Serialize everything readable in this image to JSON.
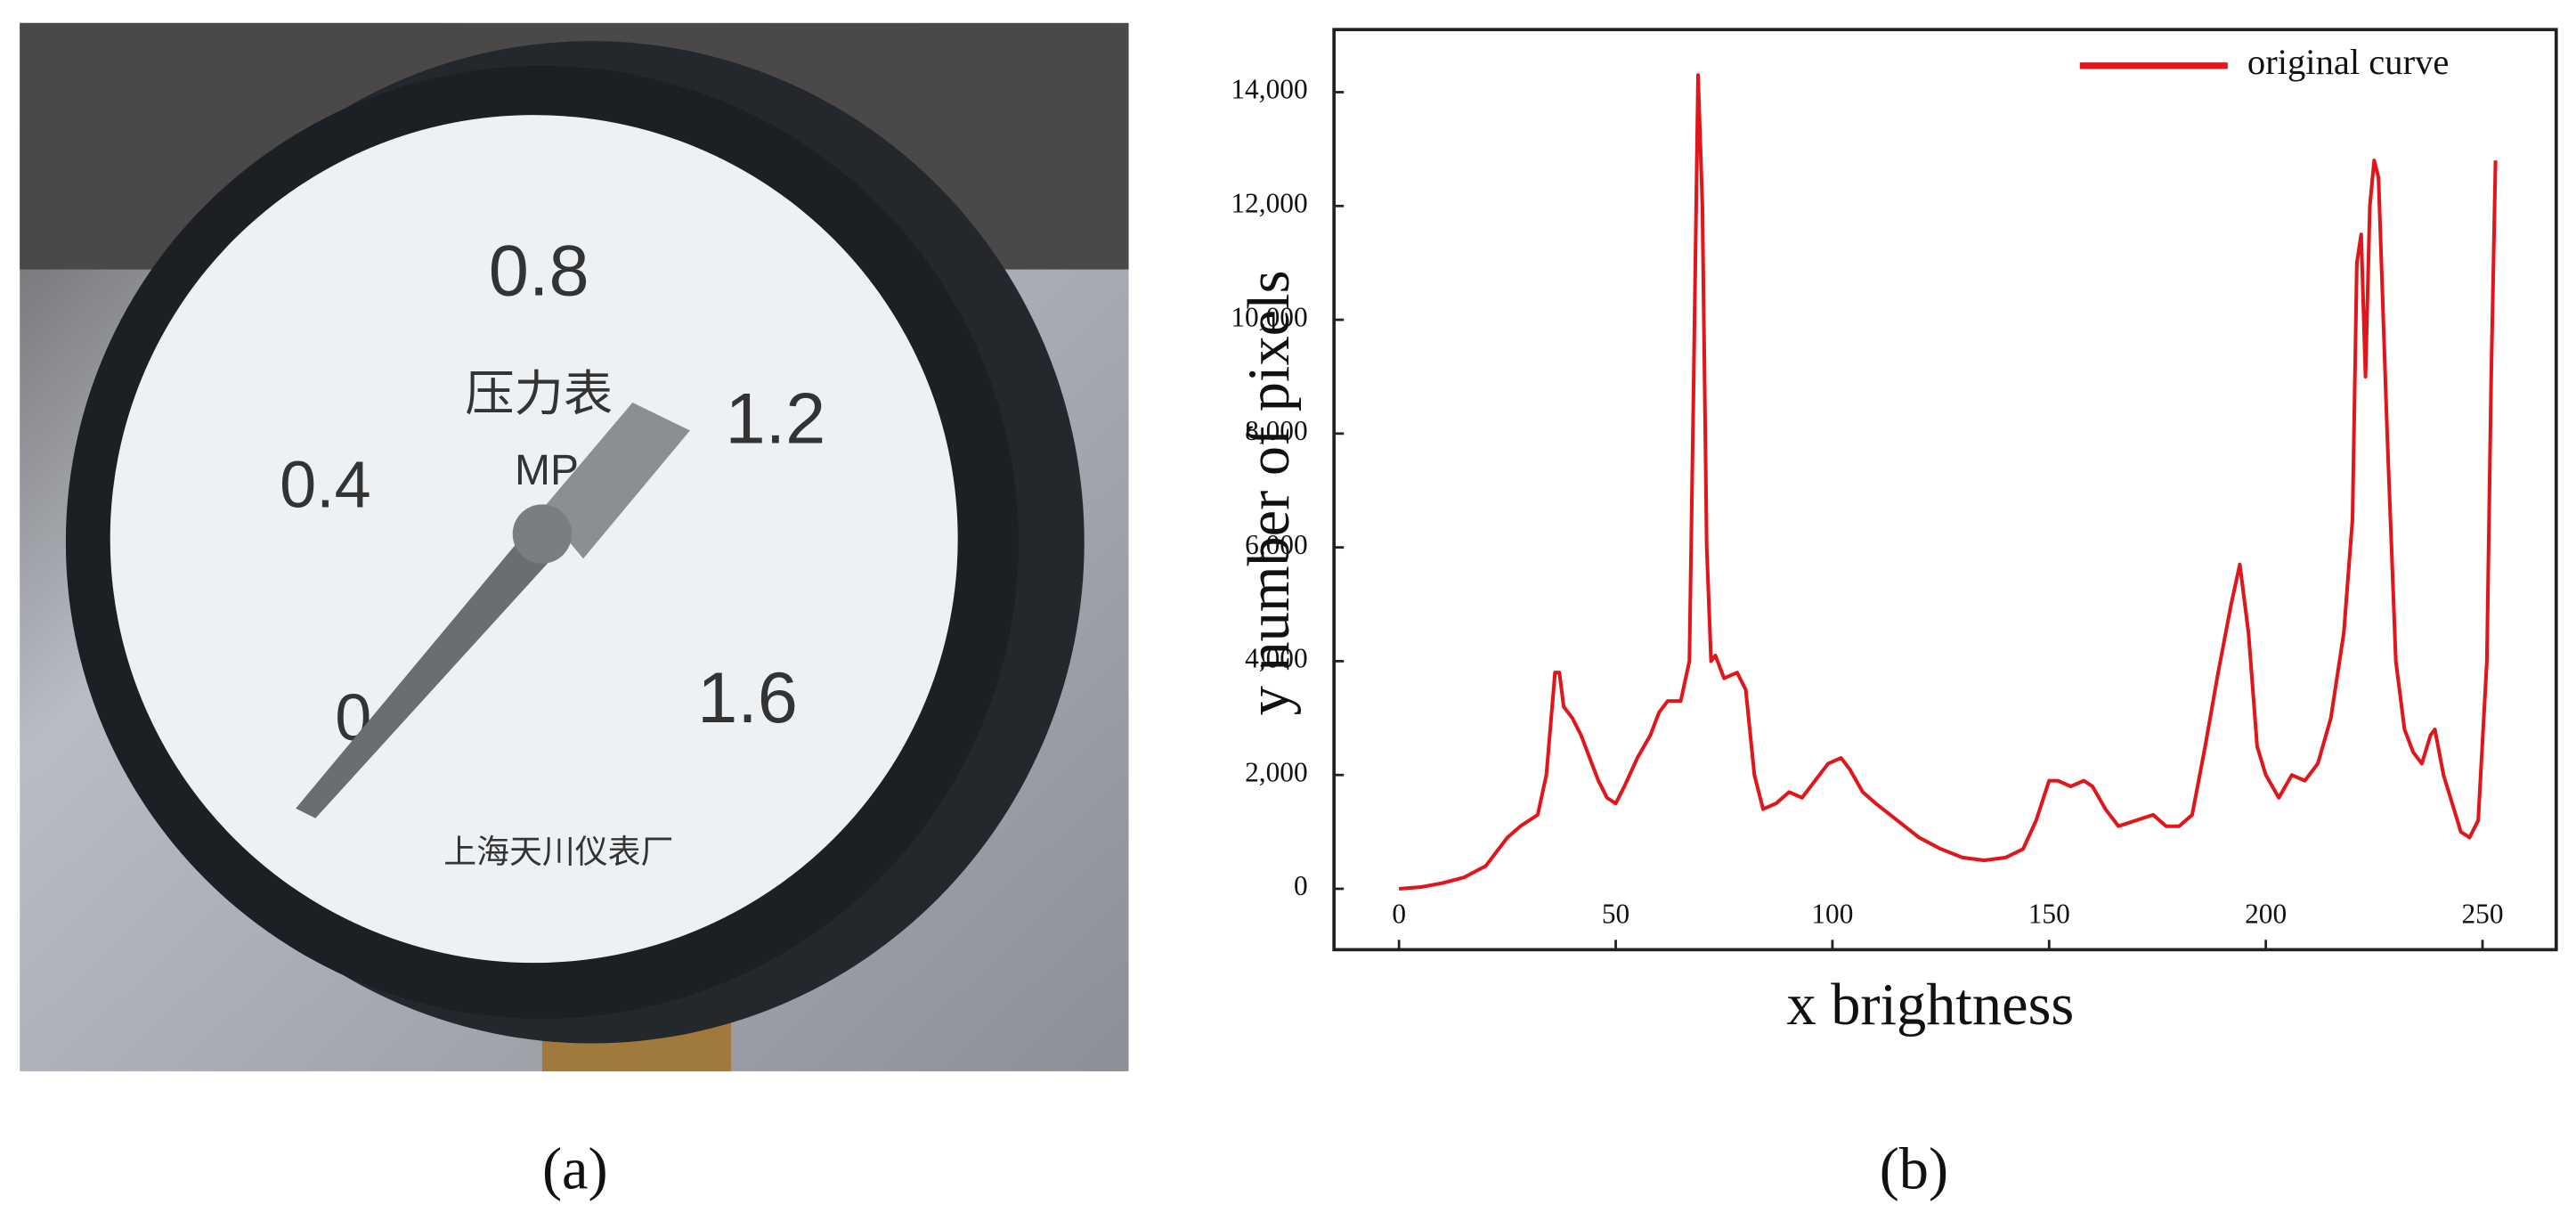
{
  "panel_a": {
    "label": "(a)",
    "dial_labels": [
      "0",
      "0.4",
      "0.8",
      "1.2",
      "1.6"
    ],
    "name": "压力表",
    "unit": "MPa",
    "maker": "上海天川仪表厂"
  },
  "chart_data": {
    "type": "line",
    "label": "(b)",
    "xlabel": "x brightness",
    "ylabel": "y number of pixels",
    "x": [
      0,
      5,
      10,
      15,
      20,
      25,
      28,
      30,
      32,
      34,
      36,
      37,
      38,
      40,
      42,
      44,
      46,
      48,
      50,
      52,
      55,
      58,
      60,
      62,
      65,
      67,
      68,
      69,
      70,
      71,
      72,
      73,
      75,
      78,
      80,
      82,
      84,
      87,
      90,
      93,
      96,
      99,
      102,
      104,
      107,
      110,
      115,
      120,
      125,
      130,
      135,
      140,
      144,
      147,
      150,
      152,
      155,
      158,
      160,
      163,
      166,
      170,
      174,
      177,
      180,
      183,
      186,
      189,
      192,
      194,
      196,
      198,
      200,
      203,
      206,
      209,
      212,
      215,
      218,
      220,
      221,
      222,
      223,
      224,
      225,
      226,
      228,
      230,
      232,
      234,
      236,
      238,
      239,
      241,
      243,
      245,
      247,
      249,
      251,
      252,
      253
    ],
    "series": [
      {
        "name": "original curve",
        "color": "#e0161b",
        "values": [
          0,
          30,
          100,
          200,
          400,
          900,
          1100,
          1200,
          1300,
          2000,
          3800,
          3800,
          3200,
          3000,
          2700,
          2300,
          1900,
          1600,
          1500,
          1800,
          2300,
          2700,
          3100,
          3300,
          3300,
          4000,
          9000,
          14300,
          12000,
          6000,
          4000,
          4100,
          3700,
          3800,
          3500,
          2000,
          1400,
          1500,
          1700,
          1600,
          1900,
          2200,
          2300,
          2100,
          1700,
          1500,
          1200,
          900,
          700,
          550,
          500,
          550,
          700,
          1200,
          1900,
          1900,
          1800,
          1900,
          1800,
          1400,
          1100,
          1200,
          1300,
          1100,
          1100,
          1300,
          2500,
          3800,
          5000,
          5700,
          4500,
          2500,
          2000,
          1600,
          2000,
          1900,
          2200,
          3000,
          4500,
          6500,
          11000,
          11500,
          9000,
          12000,
          12800,
          12500,
          8000,
          4000,
          2800,
          2400,
          2200,
          2700,
          2800,
          2000,
          1500,
          1000,
          900,
          1200,
          4000,
          9000,
          12800
        ]
      }
    ],
    "xlim": [
      -15,
      267
    ],
    "ylim": [
      -1070,
      15100
    ],
    "xticks": [
      0,
      50,
      100,
      150,
      200,
      250
    ],
    "yticks": [
      0,
      {
        "value": 2000,
        "label": "2,000"
      },
      {
        "value": 4000,
        "label": "4,000"
      },
      {
        "value": 6000,
        "label": "6,000"
      },
      {
        "value": 8000,
        "label": "8,000"
      },
      {
        "value": 10000,
        "label": "10,000"
      },
      {
        "value": 12000,
        "label": "12,000"
      },
      {
        "value": 14000,
        "label": "14,000"
      }
    ],
    "legend": "upper right",
    "grid": false
  }
}
